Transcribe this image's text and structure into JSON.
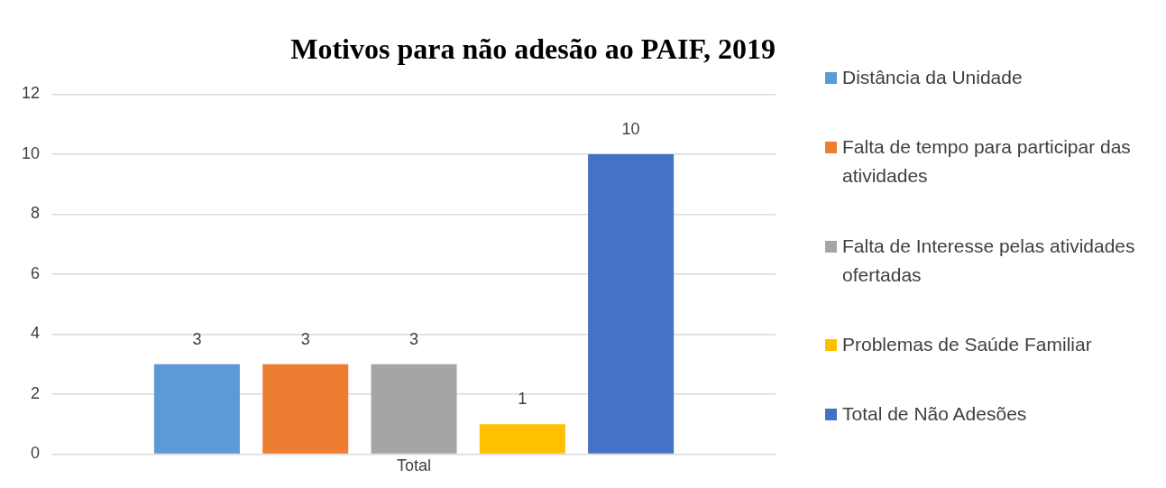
{
  "chart_data": {
    "type": "bar",
    "title": "Motivos para não adesão ao PAIF, 2019",
    "categories": [
      "Total"
    ],
    "series": [
      {
        "name": "Distância da Unidade",
        "color": "#5b9bd5",
        "values": [
          3
        ]
      },
      {
        "name": "Falta de tempo para participar das atividades",
        "color": "#ed7d31",
        "values": [
          3
        ]
      },
      {
        "name": "Falta de Interesse pelas atividades ofertadas",
        "color": "#a5a5a5",
        "values": [
          3
        ]
      },
      {
        "name": "Problemas de Saúde Familiar",
        "color": "#ffc000",
        "values": [
          1
        ]
      },
      {
        "name": "Total de Não Adesões",
        "color": "#4472c4",
        "values": [
          10
        ]
      }
    ],
    "ylim": [
      0,
      12
    ],
    "yticks": [
      0,
      2,
      4,
      6,
      8,
      10,
      12
    ],
    "grid": "y",
    "legend": "right",
    "data_labels": true
  }
}
